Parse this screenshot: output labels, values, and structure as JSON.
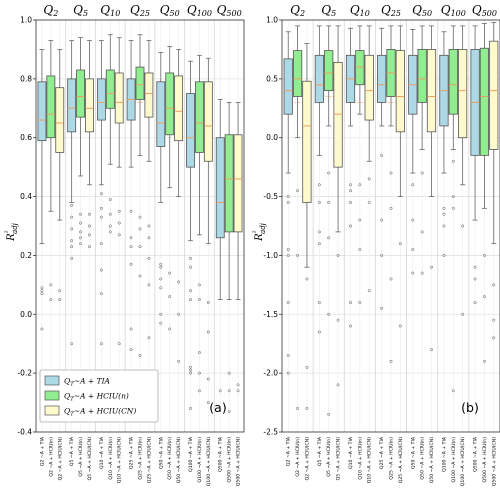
{
  "chart_data": [
    {
      "type": "box",
      "panel_label": "(a)",
      "ylabel": "R²adj",
      "ylim": [
        -0.4,
        1.0
      ],
      "yticks": [
        "1.0",
        "0.8",
        "0.6",
        "0.4",
        "0.2",
        "0.0",
        "-0.2",
        "-0.4"
      ],
      "grid": true,
      "groups": [
        {
          "label": "Q2",
          "median_line": 0.65
        },
        {
          "label": "Q5",
          "median_line": 0.7
        },
        {
          "label": "Q10",
          "median_line": 0.72
        },
        {
          "label": "Q25",
          "median_line": 0.72
        },
        {
          "label": "Q50",
          "median_line": 0.7
        },
        {
          "label": "Q100",
          "median_line": 0.65
        },
        {
          "label": "Q500",
          "median_line": 0.46
        }
      ],
      "x_tick_labels": [
        "Q2 ~A + TIA",
        "Q2 ~A + HCIU(n)",
        "Q2 ~A + HCIU(CN)",
        "Q5 ~A + TIA",
        "Q5 ~A + HCIU(n)",
        "Q5 ~A + HCIU(CN)",
        "Q10 ~A + TIA",
        "Q10 ~A + HCIU(n)",
        "Q10 ~A + HCIU(CN)",
        "Q25 ~A + TIA",
        "Q25 ~A + HCIU(n)",
        "Q25 ~A + HCIU(CN)",
        "Q50 ~A + TIA",
        "Q50 ~A + HCIU(n)",
        "Q50 ~A + HCIU(CN)",
        "Q100 ~A + TIA",
        "Q100 ~A + HCIU(n)",
        "Q100 ~A + HCIU(CN)",
        "Q500 ~A + TIA",
        "Q500 ~A + HCIU(n)",
        "Q500 ~A + HCIU(CN)"
      ],
      "series": [
        {
          "name": "QT~A + TIA",
          "color": "#add8e6",
          "boxes": [
            {
              "min": 0.24,
              "q1": 0.59,
              "med": 0.66,
              "q3": 0.79,
              "max": 0.9,
              "fliers": [
                0.09,
                0.08,
                0.07,
                -0.05
              ]
            },
            {
              "min": 0.38,
              "q1": 0.62,
              "med": 0.7,
              "q3": 0.8,
              "max": 0.93,
              "fliers": [
                0.37,
                0.33,
                0.29,
                0.25,
                0.23,
                0.19,
                -0.1
              ]
            },
            {
              "min": 0.44,
              "q1": 0.66,
              "med": 0.72,
              "q3": 0.8,
              "max": 0.93,
              "fliers": [
                0.41,
                0.36,
                0.33,
                0.24,
                0.15,
                0.07,
                -0.1
              ]
            },
            {
              "min": 0.5,
              "q1": 0.66,
              "med": 0.73,
              "q3": 0.8,
              "max": 0.93,
              "fliers": [
                0.35,
                0.26,
                0.23,
                0.17,
                -0.05,
                -0.12
              ]
            },
            {
              "min": 0.38,
              "q1": 0.57,
              "med": 0.65,
              "q3": 0.79,
              "max": 0.89,
              "fliers": [
                0.17,
                0.16,
                0.12,
                0.09,
                0.0,
                -0.03
              ]
            },
            {
              "min": 0.25,
              "q1": 0.5,
              "med": 0.6,
              "q3": 0.75,
              "max": 0.86,
              "fliers": [
                0.19,
                0.16,
                0.08,
                0.05,
                -0.18,
                -0.19,
                -0.2,
                -0.32
              ]
            },
            {
              "min": 0.05,
              "q1": 0.26,
              "med": 0.38,
              "q3": 0.6,
              "max": 0.73,
              "fliers": [
                -0.26
              ]
            }
          ]
        },
        {
          "name": "QT~A + HCIU(n)",
          "color": "#90ee90",
          "boxes": [
            {
              "min": 0.35,
              "q1": 0.6,
              "med": 0.68,
              "q3": 0.81,
              "max": 0.93,
              "fliers": [
                0.1,
                0.05
              ]
            },
            {
              "min": 0.47,
              "q1": 0.67,
              "med": 0.74,
              "q3": 0.83,
              "max": 0.94,
              "fliers": [
                0.34,
                0.31,
                0.28,
                0.26,
                0.24
              ]
            },
            {
              "min": 0.51,
              "q1": 0.7,
              "med": 0.75,
              "q3": 0.83,
              "max": 0.95,
              "fliers": [
                0.39,
                0.34,
                0.3,
                0.28
              ]
            },
            {
              "min": 0.54,
              "q1": 0.73,
              "med": 0.78,
              "q3": 0.84,
              "max": 0.95,
              "fliers": [
                0.33,
                0.29,
                0.23,
                0.13,
                -0.14
              ]
            },
            {
              "min": 0.43,
              "q1": 0.61,
              "med": 0.7,
              "q3": 0.82,
              "max": 0.91,
              "fliers": [
                0.14,
                0.06,
                -0.05
              ]
            },
            {
              "min": 0.27,
              "q1": 0.55,
              "med": 0.65,
              "q3": 0.79,
              "max": 0.88,
              "fliers": [
                0.1,
                0.05,
                -0.13,
                -0.2,
                -0.26
              ]
            },
            {
              "min": 0.05,
              "q1": 0.28,
              "med": 0.46,
              "q3": 0.61,
              "max": 0.72,
              "fliers": [
                -0.2,
                -0.26,
                -0.33
              ]
            }
          ]
        },
        {
          "name": "QT~A + HCIU(CN)",
          "color": "#fffacd",
          "boxes": [
            {
              "min": 0.32,
              "q1": 0.55,
              "med": 0.65,
              "q3": 0.77,
              "max": 0.9,
              "fliers": [
                0.08,
                0.05
              ]
            },
            {
              "min": 0.44,
              "q1": 0.62,
              "med": 0.7,
              "q3": 0.8,
              "max": 0.93,
              "fliers": [
                0.34,
                0.3,
                0.27,
                0.23
              ]
            },
            {
              "min": 0.5,
              "q1": 0.65,
              "med": 0.72,
              "q3": 0.82,
              "max": 0.94,
              "fliers": [
                0.35,
                0.31,
                0.27,
                -0.1
              ]
            },
            {
              "min": 0.52,
              "q1": 0.67,
              "med": 0.75,
              "q3": 0.82,
              "max": 0.93,
              "fliers": [
                0.3,
                0.26,
                0.19,
                0.1,
                -0.08
              ]
            },
            {
              "min": 0.4,
              "q1": 0.59,
              "med": 0.69,
              "q3": 0.81,
              "max": 0.9,
              "fliers": [
                0.11,
                0.0,
                -0.16
              ]
            },
            {
              "min": 0.24,
              "q1": 0.52,
              "med": 0.64,
              "q3": 0.79,
              "max": 0.87,
              "fliers": [
                0.04,
                -0.06,
                -0.22,
                -0.3
              ]
            },
            {
              "min": 0.05,
              "q1": 0.28,
              "med": 0.46,
              "q3": 0.61,
              "max": 0.72,
              "fliers": [
                -0.24,
                -0.26
              ]
            }
          ]
        }
      ]
    },
    {
      "type": "box",
      "panel_label": "(b)",
      "ylabel": "R²adj",
      "ylim": [
        -2.5,
        1.0
      ],
      "yticks": [
        "1.0",
        "0.5",
        "0.0",
        "-0.5",
        "-1.0",
        "-1.5",
        "-2.0",
        "-2.5"
      ],
      "grid": true,
      "groups": [
        {
          "label": "Q2",
          "median_line": 0.3
        },
        {
          "label": "Q5",
          "median_line": 0.35
        },
        {
          "label": "Q10",
          "median_line": 0.3
        },
        {
          "label": "Q25",
          "median_line": 0.3
        },
        {
          "label": "Q50",
          "median_line": 0.3
        },
        {
          "label": "Q100",
          "median_line": 0.3
        },
        {
          "label": "Q500",
          "median_line": 0.4
        }
      ],
      "x_tick_labels": [
        "Q2 ~A + TIA",
        "Q2 ~A + HCIU(n)",
        "Q2 ~A + HCIU(CN)",
        "Q5 ~A + TIA",
        "Q5 ~A + HCIU(n)",
        "Q5 ~A + HCIU(CN)",
        "Q10 ~A + TIA",
        "Q10 ~A + HCIU(n)",
        "Q10 ~A + HCIU(CN)",
        "Q25 ~A + TIA",
        "Q25 ~A + HCIU(n)",
        "Q25 ~A + HCIU(CN)",
        "Q50 ~A + TIA",
        "Q50 ~A + HCIU(n)",
        "Q50 ~A + HCIU(CN)",
        "Q100 ~A + TIA",
        "Q100 ~A + HCIU(n)",
        "Q100 ~A + HCIU(CN)",
        "Q500 ~A + TIA",
        "Q500 ~A + HCIU(n)",
        "Q500 ~A + HCIU(CN)"
      ],
      "series": [
        {
          "name": "QT~A + TIA",
          "color": "#add8e6",
          "boxes": [
            {
              "min": -0.3,
              "q1": 0.2,
              "med": 0.4,
              "q3": 0.67,
              "max": 0.9,
              "fliers": [
                -0.5,
                -0.55,
                -0.95,
                -1.0,
                -1.4,
                -1.85,
                -2.0
              ]
            },
            {
              "min": -0.15,
              "q1": 0.3,
              "med": 0.45,
              "q3": 0.7,
              "max": 0.95,
              "fliers": [
                -0.4,
                -0.55,
                -0.8,
                -0.9,
                -1.4,
                -1.65
              ]
            },
            {
              "min": 0.1,
              "q1": 0.3,
              "med": 0.5,
              "q3": 0.7,
              "max": 0.93,
              "fliers": [
                -0.4,
                -0.45,
                -0.55,
                -0.75,
                -1.4,
                -1.6
              ]
            },
            {
              "min": 0.1,
              "q1": 0.3,
              "med": 0.45,
              "q3": 0.7,
              "max": 0.93,
              "fliers": [
                -0.15,
                -0.7,
                -1.0,
                -1.45
              ]
            },
            {
              "min": -0.3,
              "q1": 0.2,
              "med": 0.45,
              "q3": 0.7,
              "max": 0.92,
              "fliers": [
                -0.4,
                -0.7,
                -0.95,
                -1.15
              ]
            },
            {
              "min": -0.3,
              "q1": 0.1,
              "med": 0.4,
              "q3": 0.7,
              "max": 0.9,
              "fliers": [
                -0.6,
                -0.65,
                -0.75,
                -1.0
              ]
            },
            {
              "min": -0.7,
              "q1": -0.15,
              "med": 0.3,
              "q3": 0.75,
              "max": 0.95,
              "fliers": [
                -1.1,
                -1.2,
                -1.4
              ]
            }
          ]
        },
        {
          "name": "QT~A + HCIU(n)",
          "color": "#90ee90",
          "boxes": [
            {
              "min": 0.0,
              "q1": 0.35,
              "med": 0.5,
              "q3": 0.74,
              "max": 0.95,
              "fliers": [
                -0.45,
                -1.0,
                -2.3
              ]
            },
            {
              "min": 0.1,
              "q1": 0.4,
              "med": 0.55,
              "q3": 0.74,
              "max": 0.95,
              "fliers": [
                -0.3,
                -0.55,
                -0.85,
                -1.5,
                -2.35
              ]
            },
            {
              "min": 0.2,
              "q1": 0.45,
              "med": 0.6,
              "q3": 0.74,
              "max": 0.95,
              "fliers": [
                -0.4,
                -0.7,
                -0.95,
                -1.4
              ]
            },
            {
              "min": 0.1,
              "q1": 0.35,
              "med": 0.55,
              "q3": 0.75,
              "max": 0.95,
              "fliers": [
                -0.3,
                -0.6,
                -1.2,
                -1.9
              ]
            },
            {
              "min": -0.1,
              "q1": 0.3,
              "med": 0.5,
              "q3": 0.75,
              "max": 0.95,
              "fliers": [
                -0.3,
                -0.8,
                -1.15
              ]
            },
            {
              "min": -0.1,
              "q1": 0.2,
              "med": 0.45,
              "q3": 0.75,
              "max": 0.95,
              "fliers": [
                -0.2,
                -0.5,
                -0.6,
                -2.15
              ]
            },
            {
              "min": -0.6,
              "q1": -0.15,
              "med": 0.35,
              "q3": 0.76,
              "max": 0.97,
              "fliers": [
                -1.0,
                -1.35,
                -1.9
              ]
            }
          ]
        },
        {
          "name": "QT~A + HCIU(CN)",
          "color": "#fffacd",
          "boxes": [
            {
              "min": -1.1,
              "q1": -0.55,
              "med": 0.1,
              "q3": 0.48,
              "max": 0.8,
              "fliers": [
                -1.2,
                -1.95,
                -2.3
              ]
            },
            {
              "min": -0.8,
              "q1": -0.25,
              "med": 0.2,
              "q3": 0.64,
              "max": 0.95,
              "fliers": [
                -1.0,
                -1.55,
                -2.1
              ]
            },
            {
              "min": -0.2,
              "q1": 0.15,
              "med": 0.4,
              "q3": 0.7,
              "max": 0.95,
              "fliers": [
                -0.35,
                -0.55,
                -1.3
              ]
            },
            {
              "min": -0.5,
              "q1": 0.05,
              "med": 0.35,
              "q3": 0.74,
              "max": 0.95,
              "fliers": [
                -0.9,
                -1.6
              ]
            },
            {
              "min": -0.5,
              "q1": 0.05,
              "med": 0.35,
              "q3": 0.75,
              "max": 0.95,
              "fliers": [
                -1.1,
                -1.8
              ]
            },
            {
              "min": -0.4,
              "q1": 0.0,
              "med": 0.4,
              "q3": 0.75,
              "max": 0.95,
              "fliers": [
                -0.75,
                -1.5
              ]
            },
            {
              "min": -0.9,
              "q1": -0.1,
              "med": 0.4,
              "q3": 0.82,
              "max": 0.98,
              "fliers": [
                -1.25,
                -1.55,
                -1.7
              ]
            }
          ]
        }
      ]
    }
  ],
  "legend": {
    "items": [
      {
        "prefix": "Q",
        "sub": "T",
        "rest": "~A + TIA",
        "color": "#add8e6"
      },
      {
        "prefix": "Q",
        "sub": "T",
        "rest": "~A + HCIU(n)",
        "color": "#90ee90"
      },
      {
        "prefix": "Q",
        "sub": "T",
        "rest": "~A + HCIU(CN)",
        "color": "#fffacd"
      }
    ]
  }
}
